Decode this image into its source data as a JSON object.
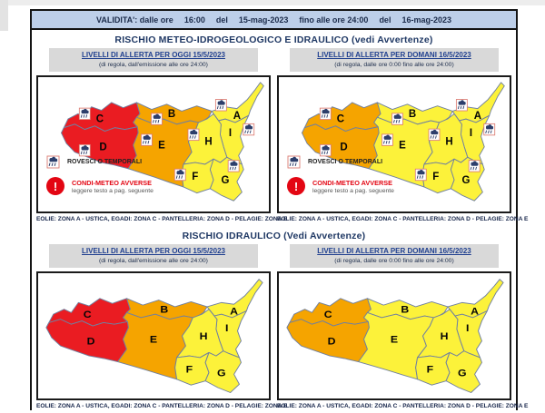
{
  "page": {
    "validity": {
      "parts": [
        "VALIDITA': dalle ore",
        "16:00",
        "del",
        "15-mag-2023",
        "fino alle ore 24:00",
        "del",
        "16-mag-2023"
      ]
    },
    "sections": [
      {
        "title": "RISCHIO METEO-IDROGEOLOGICO E IDRAULICO (vedi Avvertenze)"
      },
      {
        "title": "RISCHIO IDRAULICO (Vedi Avvertenze)"
      }
    ],
    "panel_headers": {
      "oggi": {
        "title": "LIVELLI DI ALLERTA PER OGGI 15/5/2023",
        "subtitle": "(di regola, dall'emissione alle ore 24:00)"
      },
      "domani": {
        "title": "LIVELLI DI ALLERTA PER DOMANI 16/5/2023",
        "subtitle": "(di regola, dalle ore 0:00 fino alle ore 24:00)"
      }
    },
    "caption": "EOLIE: ZONA A - USTICA, EGADI: ZONA C - PANTELLERIA: ZONA D - PELAGIE: ZONA E",
    "legend": {
      "icon_label": "ROVESCI O TEMPORALI",
      "warning_icon": "!",
      "warning_title": "CONDI-METEO AVVERSE",
      "warning_sub": "leggere testo a pag. seguente"
    }
  },
  "palette": {
    "red": "#EA1C22",
    "orange": "#F5A400",
    "yellow": "#FCF23A",
    "map_border": "#7080A0",
    "header_blue": "#BDCFE9",
    "header_gray": "#D9D9D9"
  },
  "zone_labels": [
    "A",
    "B",
    "C",
    "D",
    "E",
    "F",
    "G",
    "H",
    "I"
  ],
  "maps": [
    {
      "name": "meteo-oggi",
      "levels": {
        "A": "yellow",
        "B": "orange",
        "C": "red",
        "D": "red",
        "E": "orange",
        "F": "yellow",
        "G": "yellow",
        "H": "yellow",
        "I": "yellow"
      },
      "storm_icons": true,
      "legend": true
    },
    {
      "name": "meteo-domani",
      "levels": {
        "A": "yellow",
        "B": "yellow",
        "C": "orange",
        "D": "orange",
        "E": "yellow",
        "F": "yellow",
        "G": "yellow",
        "H": "yellow",
        "I": "yellow"
      },
      "storm_icons": true,
      "legend": true
    },
    {
      "name": "idraulico-oggi",
      "levels": {
        "A": "yellow",
        "B": "orange",
        "C": "red",
        "D": "red",
        "E": "orange",
        "F": "yellow",
        "G": "yellow",
        "H": "yellow",
        "I": "yellow"
      },
      "storm_icons": false,
      "legend": false
    },
    {
      "name": "idraulico-domani",
      "levels": {
        "A": "yellow",
        "B": "yellow",
        "C": "orange",
        "D": "orange",
        "E": "yellow",
        "F": "yellow",
        "G": "yellow",
        "H": "yellow",
        "I": "yellow"
      },
      "storm_icons": false,
      "legend": false
    }
  ]
}
